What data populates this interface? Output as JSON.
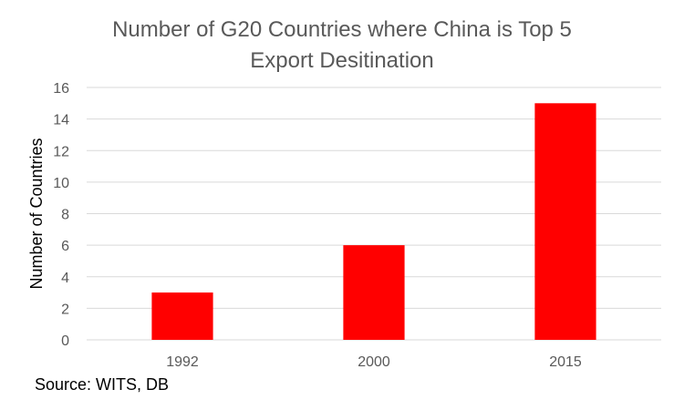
{
  "chart_data": {
    "type": "bar",
    "title_lines": [
      "Number of G20 Countries where China is Top 5",
      "Export Desitination"
    ],
    "categories": [
      "1992",
      "2000",
      "2015"
    ],
    "values": [
      3,
      6,
      15
    ],
    "xlabel": "",
    "ylabel": "Number of Countries",
    "ylim": [
      0,
      16
    ],
    "yticks": [
      "0",
      "2",
      "4",
      "6",
      "8",
      "10",
      "12",
      "14",
      "16"
    ],
    "grid": true,
    "legend": "none",
    "bar_color": "#FF0000",
    "grid_color": "#D9D9D9",
    "tick_label_color": "#595959"
  },
  "footer": {
    "source": "Source: WITS, DB"
  }
}
